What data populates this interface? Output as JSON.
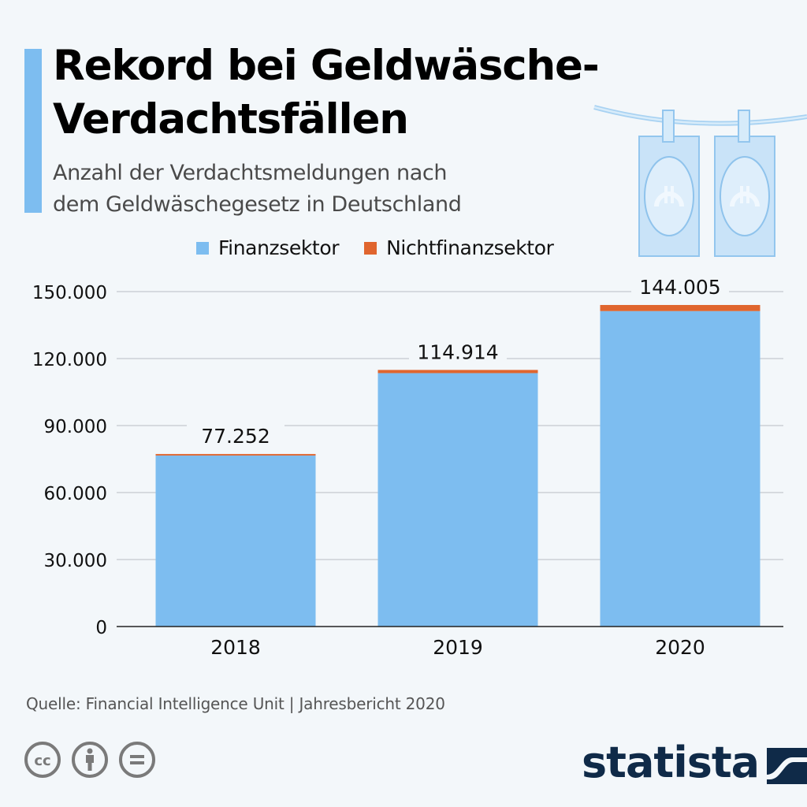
{
  "header": {
    "title": "Rekord bei Geldwäsche-Verdachtsfällen",
    "title_line1": "Rekord bei Geldwäsche-",
    "title_line2": "Verdachtsfällen",
    "subtitle_line1": "Anzahl der Verdachtsmeldungen nach",
    "subtitle_line2": "dem Geldwäschegesetz in Deutschland",
    "accent_color": "#7dbdf0"
  },
  "illustration": {
    "icon": "euro-banknotes-on-clothesline-icon",
    "count": 2
  },
  "chart_data": {
    "type": "bar",
    "stacked": true,
    "title": "Rekord bei Geldwäsche-Verdachtsfällen",
    "subtitle": "Anzahl der Verdachtsmeldungen nach dem Geldwäschegesetz in Deutschland",
    "xlabel": "",
    "ylabel": "",
    "categories": [
      "2018",
      "2019",
      "2020"
    ],
    "series": [
      {
        "name": "Finanzsektor",
        "color": "#7dbdf0",
        "values": [
          76573,
          113487,
          141273
        ]
      },
      {
        "name": "Nichtfinanzsektor",
        "color": "#e0652e",
        "values": [
          679,
          1427,
          2732
        ]
      }
    ],
    "totals": [
      77252,
      114914,
      144005
    ],
    "total_labels": [
      "77.252",
      "114.914",
      "144.005"
    ],
    "ylim": [
      0,
      150000
    ],
    "yticks": [
      0,
      30000,
      60000,
      90000,
      120000,
      150000
    ],
    "ytick_labels": [
      "0",
      "30.000",
      "60.000",
      "90.000",
      "120.000",
      "150.000"
    ],
    "grid": true,
    "legend_position": "top-right"
  },
  "legend": [
    {
      "label": "Finanzsektor",
      "color": "#7dbdf0"
    },
    {
      "label": "Nichtfinanzsektor",
      "color": "#e0652e"
    }
  ],
  "footer": {
    "source": "Quelle: Financial Intelligence Unit | Jahresbericht 2020",
    "license_icons": [
      "cc-icon",
      "attribution-icon",
      "no-derivatives-icon"
    ],
    "brand": "statista",
    "brand_color": "#0f2a48"
  }
}
